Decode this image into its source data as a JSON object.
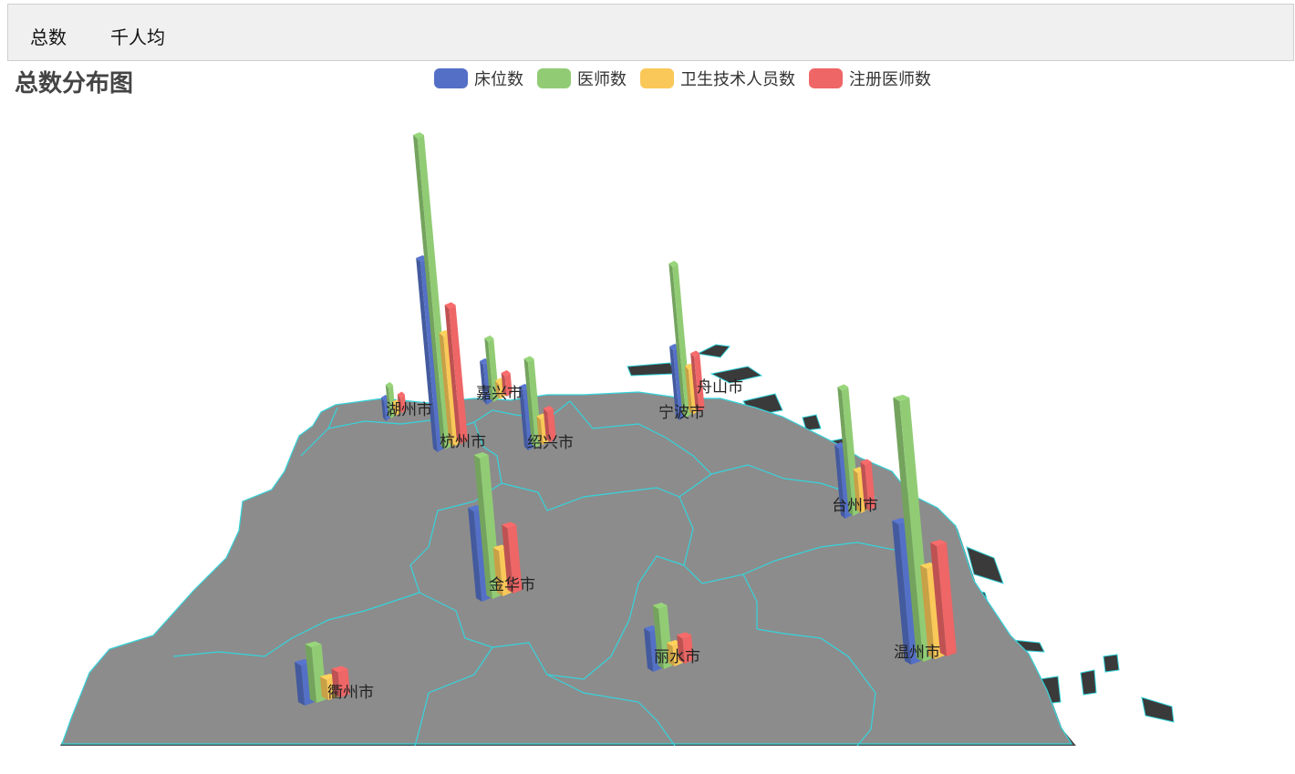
{
  "tabs": [
    {
      "label": "总数"
    },
    {
      "label": "千人均"
    }
  ],
  "title": "总数分布图",
  "legend": [
    {
      "name": "床位数",
      "color": "#5470c6"
    },
    {
      "name": "医师数",
      "color": "#91cc75"
    },
    {
      "name": "卫生技术人员数",
      "color": "#fac858"
    },
    {
      "name": "注册医师数",
      "color": "#ee6666"
    }
  ],
  "map": {
    "fill": "#8c8c8c",
    "border": "#35d4dc"
  },
  "cities": [
    {
      "name": "湖州市",
      "values": [
        4,
        6,
        2,
        3
      ]
    },
    {
      "name": "杭州市",
      "values": [
        38,
        62,
        22,
        27
      ]
    },
    {
      "name": "嘉兴市",
      "values": [
        8,
        12,
        3,
        4
      ]
    },
    {
      "name": "绍兴市",
      "values": [
        12,
        17,
        5,
        6
      ]
    },
    {
      "name": "宁波市",
      "values": [
        14,
        30,
        9,
        11
      ]
    },
    {
      "name": "舟山市",
      "values": []
    },
    {
      "name": "台州市",
      "values": [
        14,
        25,
        8,
        9
      ]
    },
    {
      "name": "金华市",
      "values": [
        18,
        28,
        9,
        13
      ]
    },
    {
      "name": "丽水市",
      "values": [
        8,
        12,
        4,
        5
      ]
    },
    {
      "name": "温州市",
      "values": [
        28,
        52,
        18,
        22
      ]
    },
    {
      "name": "衢州市",
      "values": [
        8,
        11,
        4,
        5
      ]
    }
  ]
}
